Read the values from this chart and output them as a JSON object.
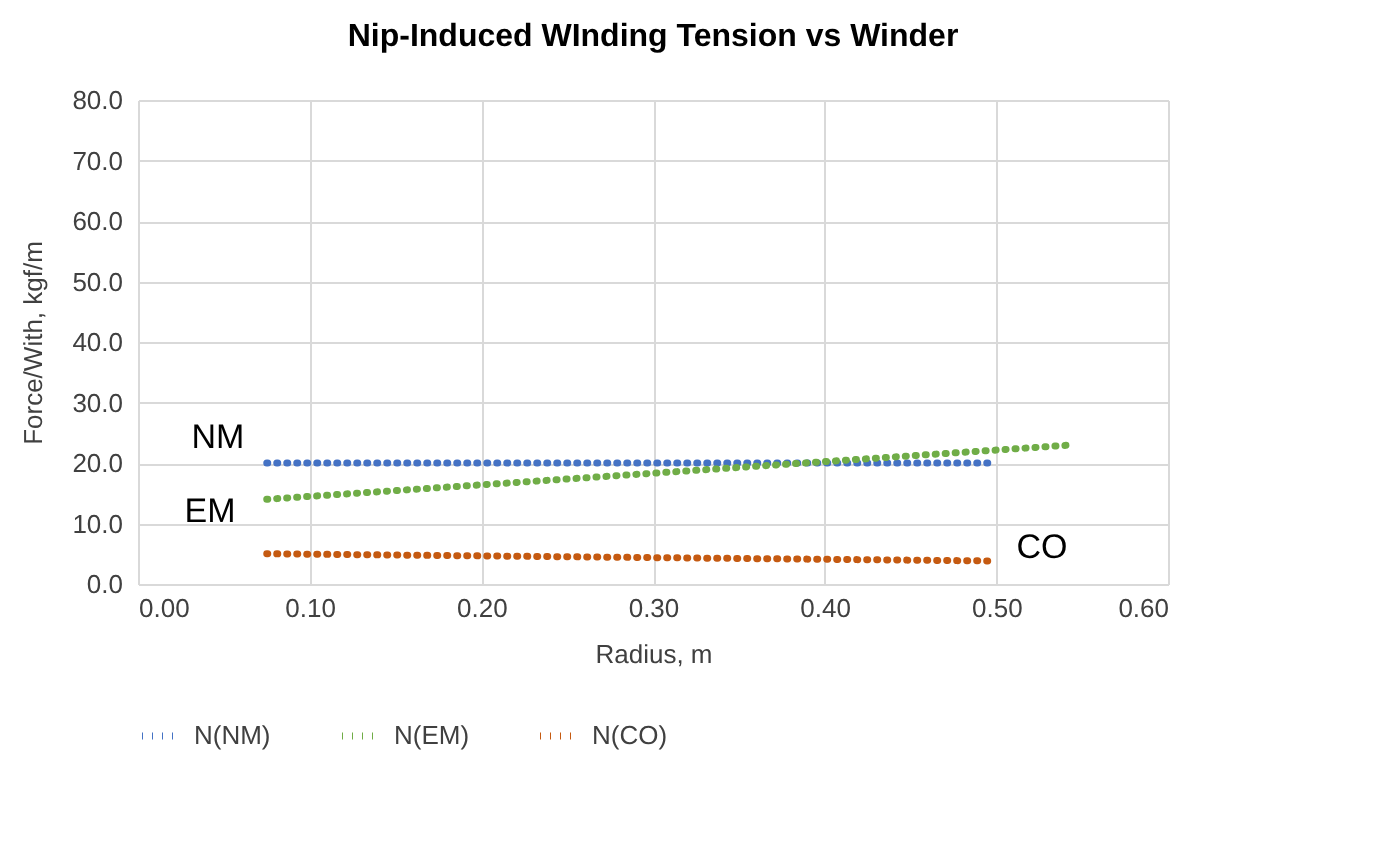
{
  "chart_data": {
    "type": "line",
    "title": "Nip-Induced WInding Tension vs Winder",
    "xlabel": "Radius, m",
    "ylabel": "Force/With, kgf/m",
    "series": [
      {
        "name": "N(NM)",
        "color": "#4472c4",
        "x": [
          0.075,
          0.3,
          0.5
        ],
        "values": [
          20,
          20,
          20
        ]
      },
      {
        "name": "N(EM)",
        "color": "#70ad47",
        "x": [
          0.075,
          0.545
        ],
        "values": [
          14,
          23
        ]
      },
      {
        "name": "N(CO)",
        "color": "#c55a11",
        "x": [
          0.075,
          0.5
        ],
        "values": [
          5,
          3.8
        ]
      }
    ],
    "annotations": [
      "NM",
      "EM",
      "CO"
    ],
    "xlim": [
      0,
      0.6
    ],
    "ylim": [
      0,
      80
    ],
    "xticks": [
      {
        "value": 0,
        "label": "0.00"
      },
      {
        "value": 0.1,
        "label": "0.10"
      },
      {
        "value": 0.2,
        "label": "0.20"
      },
      {
        "value": 0.3,
        "label": "0.30"
      },
      {
        "value": 0.4,
        "label": "0.40"
      },
      {
        "value": 0.5,
        "label": "0.50"
      },
      {
        "value": 0.6,
        "label": "0.60"
      }
    ],
    "yticks": [
      {
        "value": 0,
        "label": "0.0"
      },
      {
        "value": 10,
        "label": "10.0"
      },
      {
        "value": 20,
        "label": "20.0"
      },
      {
        "value": 30,
        "label": "30.0"
      },
      {
        "value": 40,
        "label": "40.0"
      },
      {
        "value": 50,
        "label": "50.0"
      },
      {
        "value": 60,
        "label": "60.0"
      },
      {
        "value": 70,
        "label": "70.0"
      },
      {
        "value": 80,
        "label": "80.0"
      }
    ],
    "grid": true,
    "legend": "bottom",
    "line_style": "dotted",
    "marker": "none"
  }
}
